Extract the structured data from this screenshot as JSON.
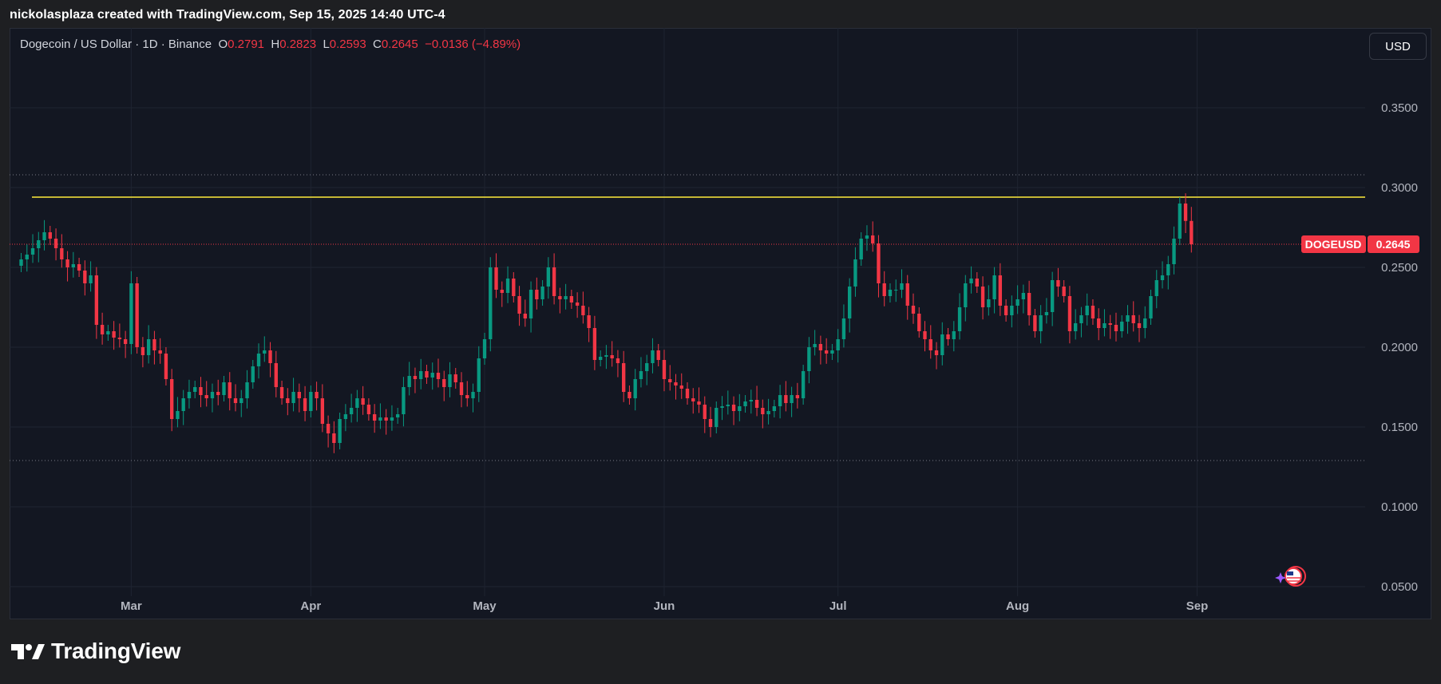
{
  "caption": "nickolasplaza created with TradingView.com, Sep 15, 2025 14:40 UTC-4",
  "legend": {
    "title": "Dogecoin / US Dollar · 1D · Binance",
    "open_key": "O",
    "open": "0.2791",
    "high_key": "H",
    "high": "0.2823",
    "low_key": "L",
    "low": "0.2593",
    "close_key": "C",
    "close": "0.2645",
    "change": "−0.0136 (−4.89%)"
  },
  "currency_button": "USD",
  "brand": "TradingView",
  "price_tag": {
    "symbol": "DOGEUSD",
    "value": "0.2645"
  },
  "colors": {
    "up": "#089981",
    "down": "#f23645",
    "resistance": "#ffeb3b",
    "background": "#131722",
    "grid": "#1f2431",
    "tag": "#f23645"
  },
  "chart_data": {
    "type": "candlestick",
    "y_ticks": [
      "0.3500",
      "0.3000",
      "0.2500",
      "0.2000",
      "0.1500",
      "0.1000",
      "0.0500"
    ],
    "x_ticks": [
      "Mar",
      "Apr",
      "May",
      "Jun",
      "Jul",
      "Aug",
      "Sep"
    ],
    "x_tick_dates": [
      "2025-03-01",
      "2025-04-01",
      "2025-05-01",
      "2025-06-01",
      "2025-07-01",
      "2025-08-01",
      "2025-09-01"
    ],
    "ylim": [
      0.03,
      0.4
    ],
    "xlim": [
      "2025-02-08",
      "2025-09-30"
    ],
    "grid": true,
    "resistance_level": 0.294,
    "dotted_levels": [
      0.308,
      0.129
    ],
    "last_price": 0.2645,
    "series": {
      "start_date": "2025-02-10",
      "closes": [
        0.255,
        0.258,
        0.262,
        0.267,
        0.272,
        0.268,
        0.262,
        0.255,
        0.25,
        0.252,
        0.248,
        0.24,
        0.245,
        0.214,
        0.208,
        0.21,
        0.206,
        0.205,
        0.202,
        0.24,
        0.2,
        0.195,
        0.205,
        0.198,
        0.196,
        0.18,
        0.155,
        0.16,
        0.168,
        0.172,
        0.175,
        0.17,
        0.168,
        0.172,
        0.17,
        0.178,
        0.168,
        0.165,
        0.168,
        0.178,
        0.188,
        0.196,
        0.198,
        0.19,
        0.175,
        0.168,
        0.165,
        0.172,
        0.168,
        0.16,
        0.172,
        0.168,
        0.152,
        0.146,
        0.14,
        0.155,
        0.158,
        0.162,
        0.168,
        0.164,
        0.158,
        0.154,
        0.156,
        0.154,
        0.156,
        0.158,
        0.175,
        0.182,
        0.18,
        0.185,
        0.181,
        0.184,
        0.18,
        0.175,
        0.183,
        0.178,
        0.17,
        0.168,
        0.172,
        0.193,
        0.205,
        0.25,
        0.236,
        0.234,
        0.243,
        0.232,
        0.221,
        0.218,
        0.236,
        0.23,
        0.238,
        0.25,
        0.232,
        0.23,
        0.232,
        0.228,
        0.226,
        0.22,
        0.212,
        0.192,
        0.194,
        0.195,
        0.193,
        0.19,
        0.172,
        0.168,
        0.18,
        0.185,
        0.19,
        0.198,
        0.192,
        0.18,
        0.178,
        0.176,
        0.174,
        0.168,
        0.166,
        0.164,
        0.155,
        0.15,
        0.162,
        0.163,
        0.164,
        0.16,
        0.163,
        0.166,
        0.167,
        0.162,
        0.158,
        0.16,
        0.163,
        0.17,
        0.165,
        0.17,
        0.168,
        0.185,
        0.2,
        0.202,
        0.198,
        0.196,
        0.198,
        0.205,
        0.218,
        0.238,
        0.255,
        0.268,
        0.27,
        0.265,
        0.24,
        0.232,
        0.236,
        0.236,
        0.24,
        0.226,
        0.221,
        0.21,
        0.205,
        0.198,
        0.195,
        0.208,
        0.205,
        0.21,
        0.225,
        0.24,
        0.243,
        0.238,
        0.225,
        0.23,
        0.245,
        0.226,
        0.22,
        0.226,
        0.23,
        0.234,
        0.22,
        0.21,
        0.22,
        0.222,
        0.242,
        0.238,
        0.232,
        0.21,
        0.215,
        0.22,
        0.226,
        0.218,
        0.212,
        0.215,
        0.214,
        0.21,
        0.216,
        0.22,
        0.215,
        0.212,
        0.218,
        0.232,
        0.242,
        0.245,
        0.252,
        0.268,
        0.29,
        0.2791,
        0.2645
      ]
    }
  }
}
